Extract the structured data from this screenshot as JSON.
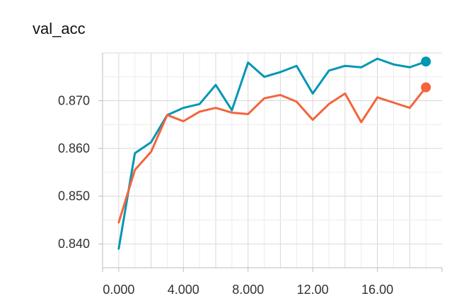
{
  "chart_data": {
    "type": "line",
    "title": "val_acc",
    "xlabel": "",
    "ylabel": "",
    "xlim": [
      -1,
      20
    ],
    "ylim": [
      0.835,
      0.88
    ],
    "grid": true,
    "x_ticks": [
      0,
      4,
      8,
      12,
      16
    ],
    "x_tick_labels": [
      "0.000",
      "4.000",
      "8.000",
      "12.00",
      "16.00"
    ],
    "y_ticks": [
      0.84,
      0.85,
      0.86,
      0.87
    ],
    "y_tick_labels": [
      "0.840",
      "0.850",
      "0.860",
      "0.870"
    ],
    "x": [
      0,
      1,
      2,
      3,
      4,
      5,
      6,
      7,
      8,
      9,
      10,
      11,
      12,
      13,
      14,
      15,
      16,
      17,
      18,
      19
    ],
    "series": [
      {
        "color": "#0097b3",
        "values": [
          0.839,
          0.859,
          0.8613,
          0.867,
          0.8685,
          0.8693,
          0.8733,
          0.868,
          0.878,
          0.875,
          0.876,
          0.8773,
          0.8715,
          0.8763,
          0.8773,
          0.877,
          0.8788,
          0.8776,
          0.877,
          0.8782
        ]
      },
      {
        "color": "#f4643c",
        "values": [
          0.8445,
          0.8555,
          0.8593,
          0.867,
          0.8657,
          0.8677,
          0.8685,
          0.8675,
          0.8672,
          0.8705,
          0.8712,
          0.8698,
          0.866,
          0.8693,
          0.8715,
          0.8655,
          0.8707,
          0.8696,
          0.8685,
          0.8728
        ]
      }
    ]
  }
}
